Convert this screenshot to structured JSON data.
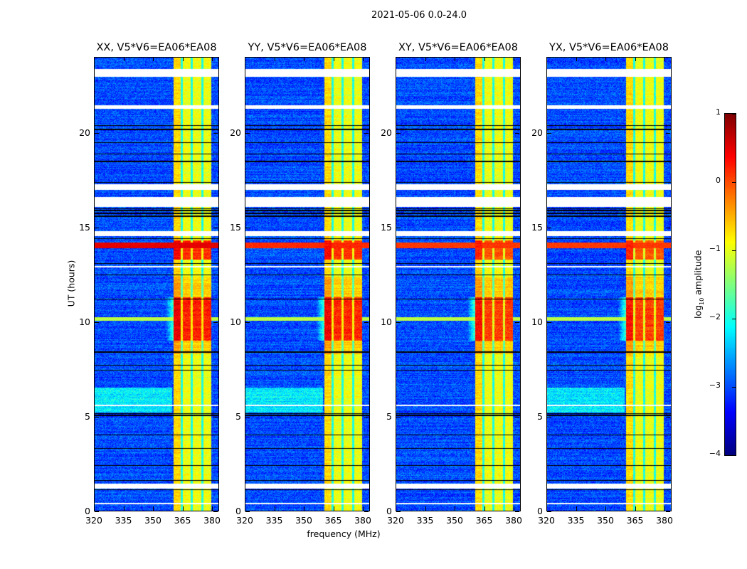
{
  "figure_title": "2021-05-06 0.0-24.0",
  "chart_data": {
    "type": "heatmap",
    "title": "2021-05-06 0.0-24.0",
    "xlabel": "frequency (MHz)",
    "ylabel": "UT (hours)",
    "xlim": [
      320,
      383.6
    ],
    "ylim": [
      0,
      24
    ],
    "xticks": [
      320,
      335,
      350,
      365,
      380
    ],
    "yticks": [
      0,
      5,
      10,
      15,
      20
    ],
    "panels": [
      {
        "title": "XX, V5*V6=EA06*EA08",
        "strength": 1.0,
        "rfi_line": 1.0
      },
      {
        "title": "YY, V5*V6=EA06*EA08",
        "strength": 0.95,
        "rfi_line": 0.6
      },
      {
        "title": "XY, V5*V6=EA06*EA08",
        "strength": 0.85,
        "rfi_line": 0.5
      },
      {
        "title": "YX, V5*V6=EA06*EA08",
        "strength": 0.85,
        "rfi_line": 0.5
      }
    ],
    "band_mhz": [
      360.5,
      379.8
    ],
    "band_gaps_mhz": [
      364.8,
      369.9,
      375.3
    ],
    "strong_event_hours": [
      9.0,
      11.3
    ],
    "strong_rfi_hours": [
      13.6,
      14.3
    ],
    "flagged_white_hours": [
      [
        23.0,
        23.38
      ],
      [
        21.28,
        21.46
      ],
      [
        17.0,
        17.3
      ],
      [
        16.1,
        16.6
      ],
      [
        14.55,
        14.8
      ],
      [
        1.15,
        1.45
      ],
      [
        0.35,
        0.42
      ],
      [
        12.9,
        12.95
      ],
      [
        5.55,
        5.6
      ]
    ],
    "black_rows_hours": [
      15.6,
      15.75,
      15.9,
      20.4,
      20.2,
      19.5,
      18.9,
      18.5,
      17.4,
      16.0,
      14.4,
      13.1,
      12.5,
      11.2,
      8.4,
      7.7,
      7.45,
      5.15,
      5.05,
      4.0,
      3.3,
      2.4,
      1.6,
      1.1
    ],
    "colorbar": {
      "label": "log10 amplitude",
      "label_main": "log",
      "label_sub": "10",
      "label_rest": " amplitude",
      "range": [
        -4,
        1
      ],
      "ticks": [
        1,
        0,
        -1,
        -2,
        -3,
        -4
      ],
      "tick_labels": [
        "1",
        "0",
        "−1",
        "−2",
        "−3",
        "−4"
      ],
      "colormap": "jet"
    }
  }
}
